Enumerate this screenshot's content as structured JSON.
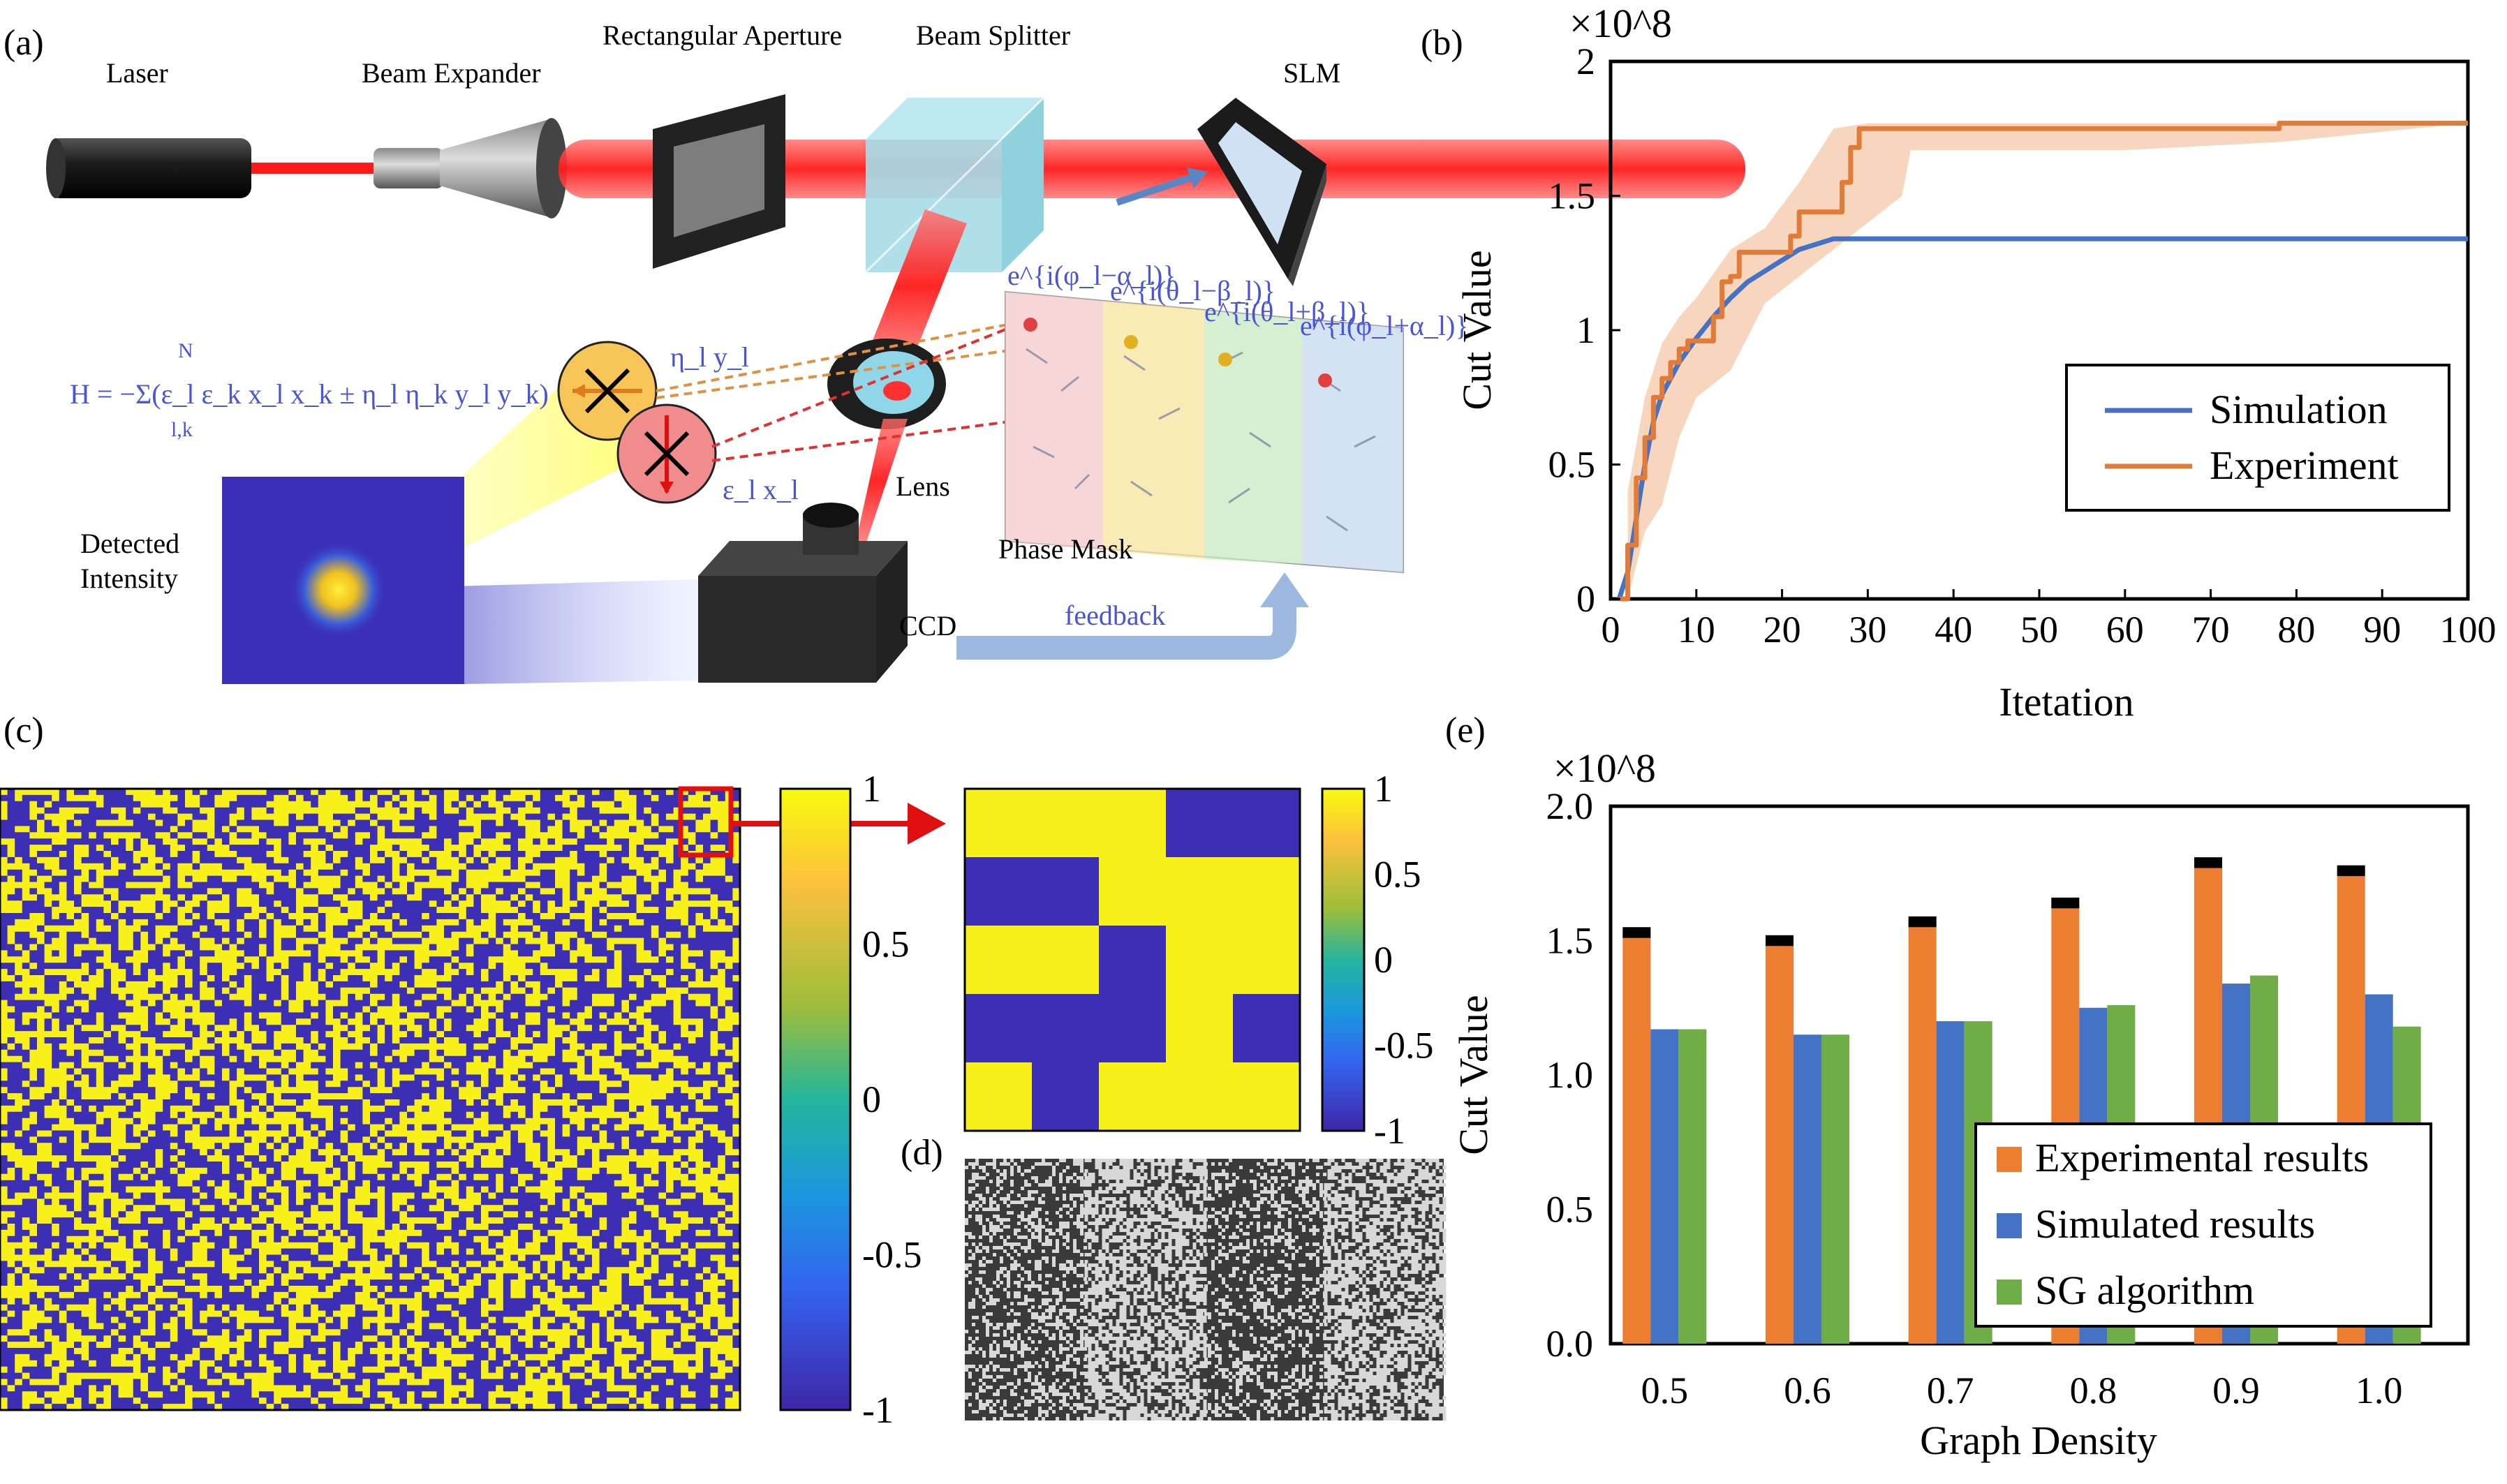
{
  "panel_labels": {
    "a": "(a)",
    "b": "(b)",
    "c": "(c)",
    "d": "(d)",
    "e": "(e)"
  },
  "setup": {
    "laser": "Laser",
    "beam_expander": "Beam Expander",
    "rect_aperture": "Rectangular Aperture",
    "beam_splitter": "Beam Splitter",
    "slm": "SLM",
    "lens": "Lens",
    "ccd": "CCD",
    "feedback": "feedback",
    "phase_mask": "Phase Mask",
    "detected_intensity": [
      "Detected",
      "Intensity"
    ],
    "hamiltonian": "H = −Σ(ε_l ε_k x_l x_k ± η_l η_k y_l y_k)",
    "sum_limits": {
      "upper": "N",
      "lower": "l,k"
    },
    "eta_y": "η_l y_l",
    "eps_x": "ε_l x_l",
    "phase_labels": [
      "e^{i(φ_l−α_l)}",
      "e^{i(θ_l−β_l)}",
      "e^{i(θ_l+β_l)}",
      "e^{i(φ_l+α_l)}"
    ]
  },
  "colorbars": {
    "main_ticks": [
      "1",
      "0.5",
      "0",
      "-0.5",
      "-1"
    ],
    "small_ticks": [
      "1",
      "0.5",
      "0",
      "-0.5",
      "-1"
    ]
  },
  "small_matrix": [
    [
      1,
      1,
      1,
      -1,
      -1
    ],
    [
      -1,
      -1,
      1,
      1,
      1
    ],
    [
      1,
      1,
      -1,
      1,
      1
    ],
    [
      -1,
      -1,
      -1,
      1,
      -1
    ],
    [
      1,
      -1,
      1,
      1,
      1
    ]
  ],
  "colors": {
    "yellow": "#f7f119",
    "navy": "#3d2fb5",
    "orange": "#ed7d31",
    "blue": "#4472c4",
    "green": "#70ad47",
    "sim_line": "#4472c4",
    "exp_line": "#e07b39"
  },
  "chart_data": [
    {
      "type": "line",
      "panel": "(b)",
      "xlabel": "Itetation",
      "ylabel": "Cut Value",
      "scale_label": "×10^8",
      "xlim": [
        0,
        100
      ],
      "ylim": [
        0,
        2
      ],
      "x_ticks": [
        "0",
        "10",
        "20",
        "30",
        "40",
        "50",
        "60",
        "70",
        "80",
        "90",
        "100"
      ],
      "y_ticks": [
        "0",
        "0.5",
        "1",
        "1.5",
        "2"
      ],
      "series": [
        {
          "name": "Simulation",
          "x": [
            1,
            2,
            3,
            4,
            5,
            6,
            8,
            10,
            12,
            14,
            16,
            18,
            20,
            22,
            24,
            26,
            30,
            40,
            60,
            80,
            100
          ],
          "y": [
            0,
            0.1,
            0.3,
            0.5,
            0.66,
            0.76,
            0.88,
            0.97,
            1.05,
            1.12,
            1.18,
            1.22,
            1.26,
            1.3,
            1.32,
            1.34,
            1.34,
            1.34,
            1.34,
            1.34,
            1.34
          ]
        },
        {
          "name": "Experiment",
          "x": [
            1,
            2,
            3,
            4,
            5,
            6,
            7,
            8,
            9,
            10,
            11,
            12,
            13,
            14,
            15,
            16,
            17,
            18,
            19,
            20,
            21,
            22,
            23,
            24,
            25,
            26,
            27,
            28,
            29,
            30,
            40,
            60,
            77,
            78,
            100
          ],
          "y": [
            0,
            0.2,
            0.45,
            0.6,
            0.75,
            0.82,
            0.88,
            0.93,
            0.96,
            0.96,
            0.96,
            1.05,
            1.18,
            1.2,
            1.29,
            1.29,
            1.29,
            1.29,
            1.29,
            1.29,
            1.35,
            1.44,
            1.44,
            1.44,
            1.44,
            1.44,
            1.55,
            1.68,
            1.75,
            1.75,
            1.75,
            1.75,
            1.75,
            1.77,
            1.77
          ]
        }
      ],
      "band_upper": {
        "x": [
          2,
          4,
          6,
          8,
          10,
          14,
          18,
          22,
          26,
          30,
          60,
          78,
          100
        ],
        "y": [
          0.4,
          0.75,
          0.95,
          1.05,
          1.12,
          1.3,
          1.38,
          1.55,
          1.75,
          1.77,
          1.77,
          1.77,
          1.77
        ]
      },
      "band_lower": {
        "x": [
          2,
          4,
          6,
          8,
          10,
          14,
          18,
          22,
          26,
          30,
          34,
          35,
          60,
          78,
          100
        ],
        "y": [
          0,
          0.25,
          0.35,
          0.6,
          0.75,
          0.85,
          1.1,
          1.2,
          1.3,
          1.4,
          1.5,
          1.67,
          1.67,
          1.7,
          1.77
        ]
      },
      "legend": "center-right"
    },
    {
      "type": "bar",
      "panel": "(e)",
      "xlabel": "Graph Density",
      "ylabel": "Cut Value",
      "scale_label": "×10^8",
      "categories": [
        "0.5",
        "0.6",
        "0.7",
        "0.8",
        "0.9",
        "1.0"
      ],
      "ylim": [
        0,
        2.0
      ],
      "y_ticks": [
        "0.0",
        "0.5",
        "1.0",
        "1.5",
        "2.0"
      ],
      "series": [
        {
          "name": "Experimental results",
          "values": [
            1.53,
            1.5,
            1.57,
            1.64,
            1.79,
            1.76
          ],
          "error": [
            0.02,
            0.02,
            0.02,
            0.02,
            0.02,
            0.02
          ]
        },
        {
          "name": "Simulated results",
          "values": [
            1.17,
            1.15,
            1.2,
            1.25,
            1.34,
            1.3
          ]
        },
        {
          "name": "SG algorithm",
          "values": [
            1.17,
            1.15,
            1.2,
            1.26,
            1.37,
            1.18
          ]
        }
      ],
      "legend": "bottom-right"
    }
  ]
}
